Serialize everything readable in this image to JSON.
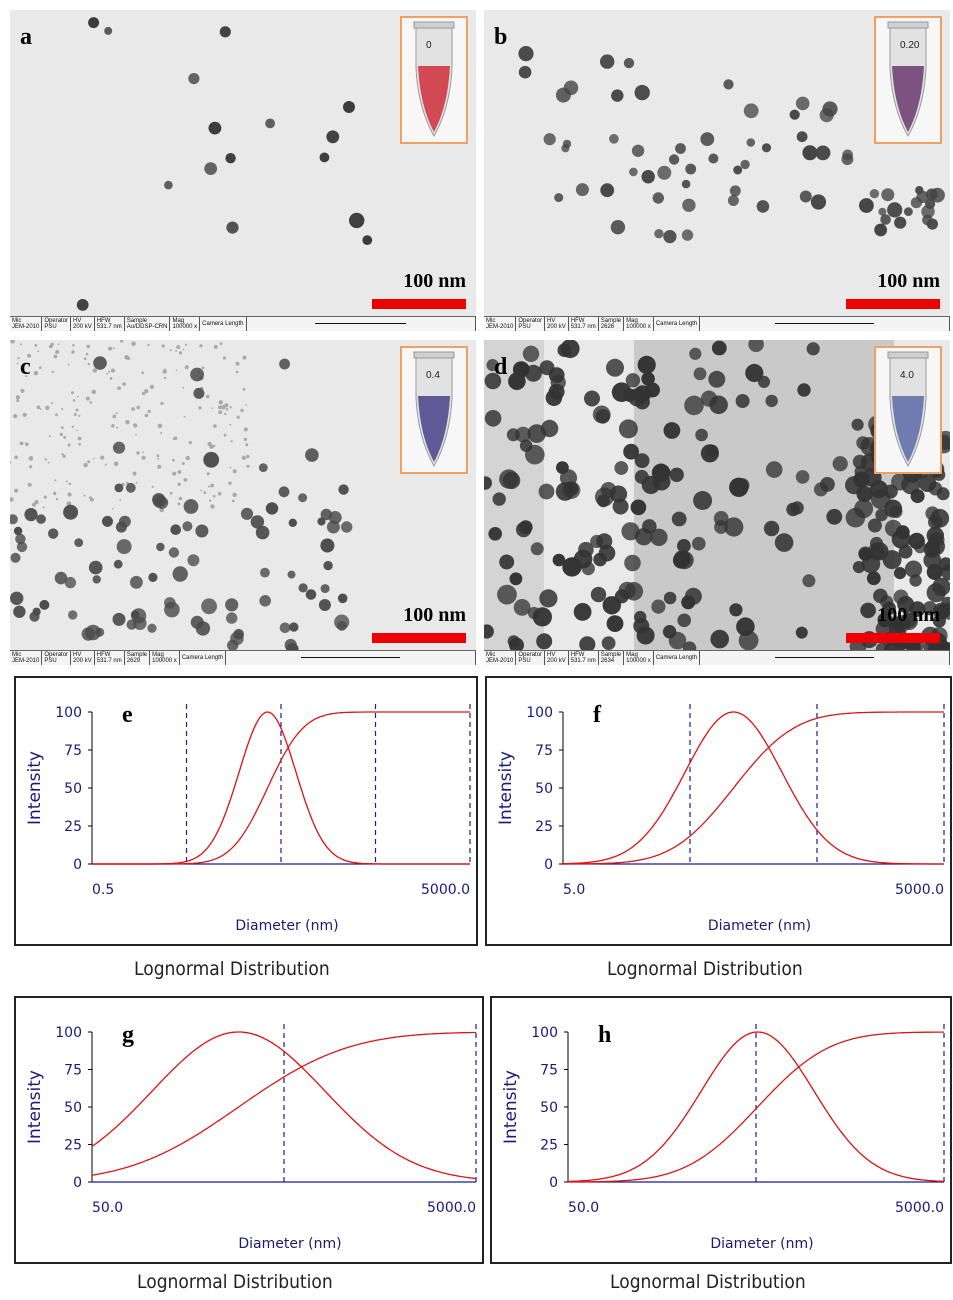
{
  "tem_panels": [
    {
      "letter": "a",
      "scale": "100 nm",
      "tube_label": "0",
      "tube_color": "#cc2e3a",
      "status": {
        "mic": "JEM-2010",
        "operator": "PSU",
        "hv": "200 kV",
        "hfw": "531.7 nm",
        "sample": "Au/DDSP-CRN",
        "mag": "100000 x"
      }
    },
    {
      "letter": "b",
      "scale": "100 nm",
      "tube_label": "0.20",
      "tube_color": "#6a3a6e",
      "status": {
        "mic": "JEM-2010",
        "operator": "PSU",
        "hv": "200 kV",
        "hfw": "531.7 nm",
        "sample": "2626",
        "mag": "100000 x"
      }
    },
    {
      "letter": "c",
      "scale": "100 nm",
      "tube_label": "0.4",
      "tube_color": "#4a3f8a",
      "status": {
        "mic": "JEM-2010",
        "operator": "PSU",
        "hv": "200 kV",
        "hfw": "531.7 nm",
        "sample": "2629",
        "mag": "100000 x"
      }
    },
    {
      "letter": "d",
      "scale": "100 nm",
      "tube_label": "4.0",
      "tube_color": "#5a6aa6",
      "status": {
        "mic": "JEM-2010",
        "operator": "PSU",
        "hv": "200 kV",
        "hfw": "531.7 nm",
        "sample": "2634",
        "mag": "100000 x"
      }
    }
  ],
  "status_labels": {
    "mic": "Mic",
    "operator": "Operator",
    "hv": "HV",
    "hfw": "HFW",
    "sample": "Sample",
    "mag": "Mag",
    "camera": "Camera Length"
  },
  "chart_data": [
    {
      "type": "line",
      "panel": "e",
      "xlabel": "Diameter (nm)",
      "ylabel": "Intensity",
      "caption": "Lognormal Distribution",
      "x_scale": "log",
      "xlim": [
        0.5,
        5000.0
      ],
      "ylim": [
        0,
        100
      ],
      "yticks": [
        0,
        25,
        50,
        75,
        100
      ],
      "xtick_labels": [
        "0.5",
        "5000.0"
      ],
      "markers": [
        5,
        50,
        500,
        5000
      ],
      "series": [
        {
          "kind": "distribution",
          "mean": 36,
          "sigma": 0.3,
          "values": [
            100
          ]
        },
        {
          "kind": "cumulative"
        }
      ]
    },
    {
      "type": "line",
      "panel": "f",
      "xlabel": "Diameter (nm)",
      "ylabel": "Intensity",
      "caption": "Lognormal Distribution",
      "x_scale": "log",
      "xlim": [
        5.0,
        5000.0
      ],
      "ylim": [
        0,
        100
      ],
      "yticks": [
        0,
        25,
        50,
        75,
        100
      ],
      "xtick_labels": [
        "5.0",
        "5000.0"
      ],
      "markers": [
        50,
        500,
        5000
      ],
      "series": [
        {
          "kind": "distribution",
          "mean": 110,
          "sigma": 0.38
        },
        {
          "kind": "cumulative"
        }
      ]
    },
    {
      "type": "line",
      "panel": "g",
      "xlabel": "Diameter (nm)",
      "ylabel": "Intensity",
      "caption": "Lognormal Distribution",
      "x_scale": "log",
      "xlim": [
        50.0,
        5000.0
      ],
      "ylim": [
        0,
        100
      ],
      "yticks": [
        0,
        25,
        50,
        75,
        100
      ],
      "xtick_labels": [
        "50.0",
        "5000.0"
      ],
      "markers": [
        500,
        5000
      ],
      "series": [
        {
          "kind": "distribution",
          "mean": 290,
          "sigma": 0.45
        },
        {
          "kind": "cumulative"
        }
      ]
    },
    {
      "type": "line",
      "panel": "h",
      "xlabel": "Diameter (nm)",
      "ylabel": "Intensity",
      "caption": "Lognormal Distribution",
      "x_scale": "log",
      "xlim": [
        50.0,
        5000.0
      ],
      "ylim": [
        0,
        100
      ],
      "yticks": [
        0,
        25,
        50,
        75,
        100
      ],
      "xtick_labels": [
        "50.0",
        "5000.0"
      ],
      "markers": [
        500,
        5000
      ],
      "series": [
        {
          "kind": "distribution",
          "mean": 510,
          "sigma": 0.3
        },
        {
          "kind": "cumulative"
        }
      ]
    }
  ]
}
